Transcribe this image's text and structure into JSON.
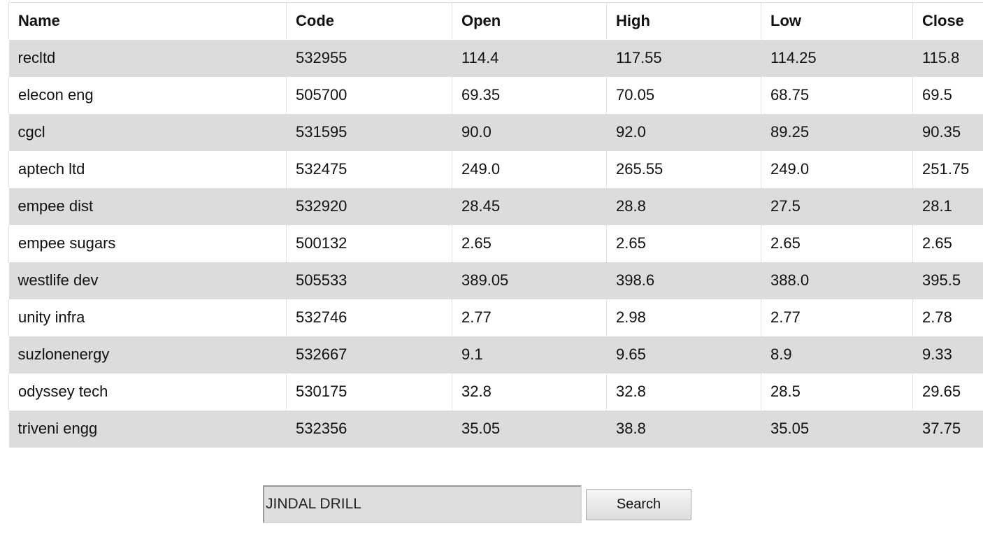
{
  "table": {
    "columns": [
      "Name",
      "Code",
      "Open",
      "High",
      "Low",
      "Close"
    ],
    "rows": [
      [
        "recltd",
        "532955",
        "114.4",
        "117.55",
        "114.25",
        "115.8"
      ],
      [
        "elecon eng",
        "505700",
        "69.35",
        "70.05",
        "68.75",
        "69.5"
      ],
      [
        "cgcl",
        "531595",
        "90.0",
        "92.0",
        "89.25",
        "90.35"
      ],
      [
        "aptech ltd",
        "532475",
        "249.0",
        "265.55",
        "249.0",
        "251.75"
      ],
      [
        "empee dist",
        "532920",
        "28.45",
        "28.8",
        "27.5",
        "28.1"
      ],
      [
        "empee sugars",
        "500132",
        "2.65",
        "2.65",
        "2.65",
        "2.65"
      ],
      [
        "westlife dev",
        "505533",
        "389.05",
        "398.6",
        "388.0",
        "395.5"
      ],
      [
        "unity infra",
        "532746",
        "2.77",
        "2.98",
        "2.77",
        "2.78"
      ],
      [
        "suzlonenergy",
        "532667",
        "9.1",
        "9.65",
        "8.9",
        "9.33"
      ],
      [
        "odyssey tech",
        "530175",
        "32.8",
        "32.8",
        "28.5",
        "29.65"
      ],
      [
        "triveni engg",
        "532356",
        "35.05",
        "38.8",
        "35.05",
        "37.75"
      ]
    ]
  },
  "search": {
    "input_value": "JINDAL DRILL",
    "button_label": "Search"
  },
  "colors": {
    "row_stripe": "#dcdcdc",
    "row_plain": "#ffffff",
    "cell_border": "#e2e2e2"
  }
}
